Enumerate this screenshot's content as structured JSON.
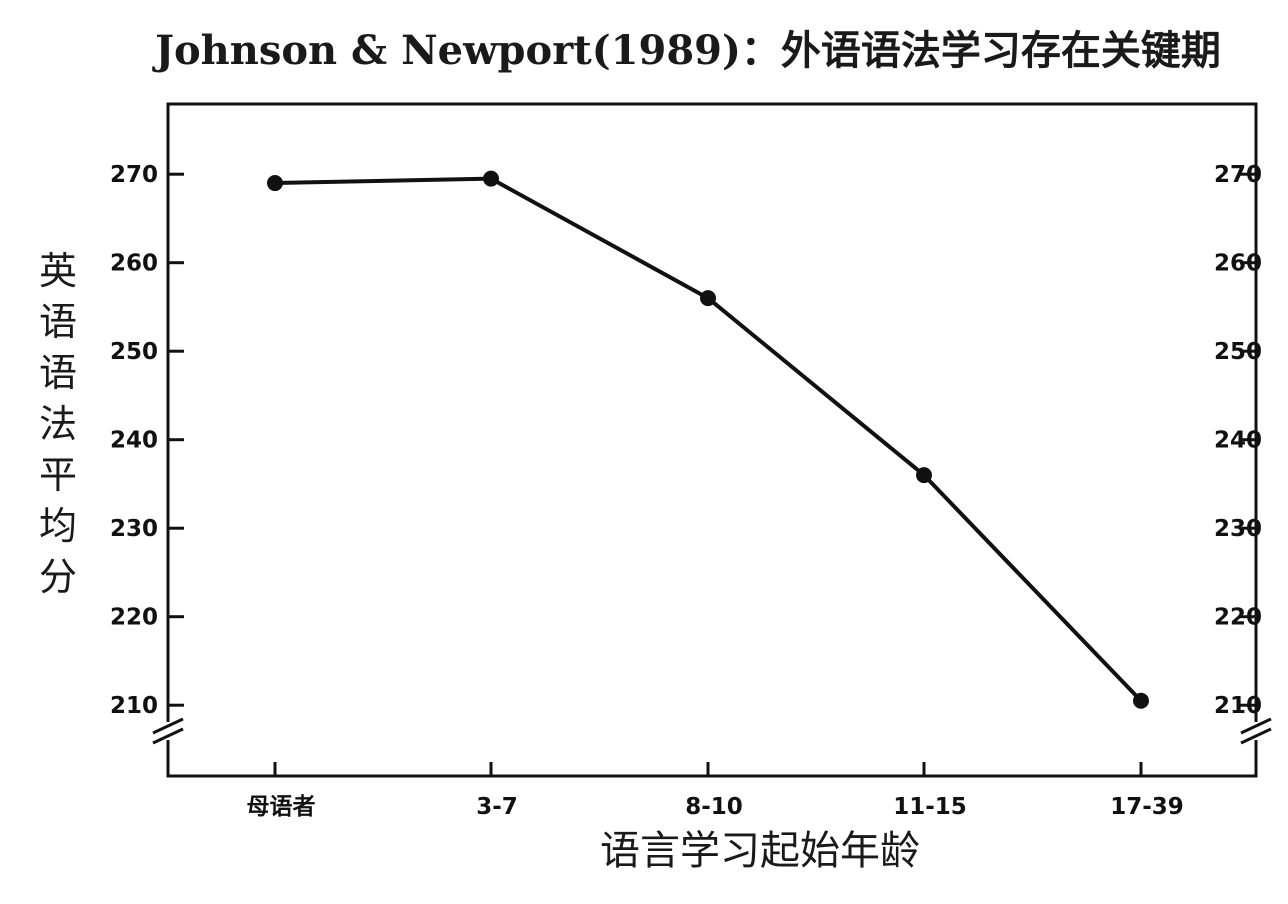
{
  "chart_data": {
    "type": "line",
    "title": "Johnson & Newport(1989)：外语语法学习存在关键期",
    "xlabel": "语言学习起始年龄",
    "ylabel": "英语语法平均分",
    "categories": [
      "母语者",
      "3-7",
      "8-10",
      "11-15",
      "17-39"
    ],
    "series": [
      {
        "values": [
          269,
          269.5,
          256,
          236,
          210.5
        ]
      }
    ],
    "ylim": [
      202,
      276
    ],
    "yticks": [
      210,
      220,
      230,
      240,
      250,
      260,
      270
    ],
    "axis_break": true,
    "grid": false,
    "legend": "none",
    "colors": {
      "line": "#111111",
      "axis": "#111111",
      "background": "#ffffff"
    }
  }
}
